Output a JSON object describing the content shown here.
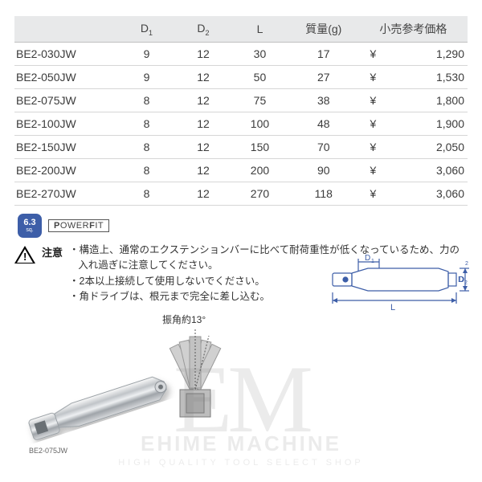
{
  "table": {
    "columns": [
      "",
      "D1",
      "D2",
      "L",
      "質量(g)",
      "小売参考価格"
    ],
    "col_widths_pct": [
      20,
      12,
      12,
      12,
      15,
      6,
      15
    ],
    "header_bg": "#e8e9ea",
    "row_border": "#d6d6d6",
    "header_border": "#bfbfbf",
    "text_color": "#3b3b3b",
    "rows": [
      {
        "model": "BE2-030JW",
        "d1": "9",
        "d2": "12",
        "l": "30",
        "mass": "17",
        "yen": "¥",
        "price": "1,290"
      },
      {
        "model": "BE2-050JW",
        "d1": "9",
        "d2": "12",
        "l": "50",
        "mass": "27",
        "yen": "¥",
        "price": "1,530"
      },
      {
        "model": "BE2-075JW",
        "d1": "8",
        "d2": "12",
        "l": "75",
        "mass": "38",
        "yen": "¥",
        "price": "1,800"
      },
      {
        "model": "BE2-100JW",
        "d1": "8",
        "d2": "12",
        "l": "100",
        "mass": "48",
        "yen": "¥",
        "price": "1,900"
      },
      {
        "model": "BE2-150JW",
        "d1": "8",
        "d2": "12",
        "l": "150",
        "mass": "70",
        "yen": "¥",
        "price": "2,050"
      },
      {
        "model": "BE2-200JW",
        "d1": "8",
        "d2": "12",
        "l": "200",
        "mass": "90",
        "yen": "¥",
        "price": "3,060"
      },
      {
        "model": "BE2-270JW",
        "d1": "8",
        "d2": "12",
        "l": "270",
        "mass": "118",
        "yen": "¥",
        "price": "3,060"
      }
    ]
  },
  "badges": {
    "sq_drive": "6.3",
    "sq_label": "sq.",
    "sq_bg": "#3d5ea8",
    "powerfit": "POWERFIT"
  },
  "caution": {
    "label": "注意",
    "lines": [
      "・構造上、通常のエクステンションバーに比べて耐荷重性が低くなっているため、力の入れ過ぎに注意してください。",
      "・2本以上接続して使用しないでください。",
      "・角ドライブは、根元まで完全に差し込む。"
    ]
  },
  "tech_diagram": {
    "d1_label": "D1",
    "d2_label": "D2",
    "l_label": "L",
    "line_color": "#3d5ea8"
  },
  "swing": {
    "label": "振角約13°",
    "line_color": "#888"
  },
  "tool_photo": {
    "caption": "BE2-075JW"
  },
  "watermark": {
    "logo": "EM",
    "title": "EHIME MACHINE",
    "sub": "HIGH QUALITY TOOL SELECT SHOP",
    "color": "#7a7a7a"
  }
}
